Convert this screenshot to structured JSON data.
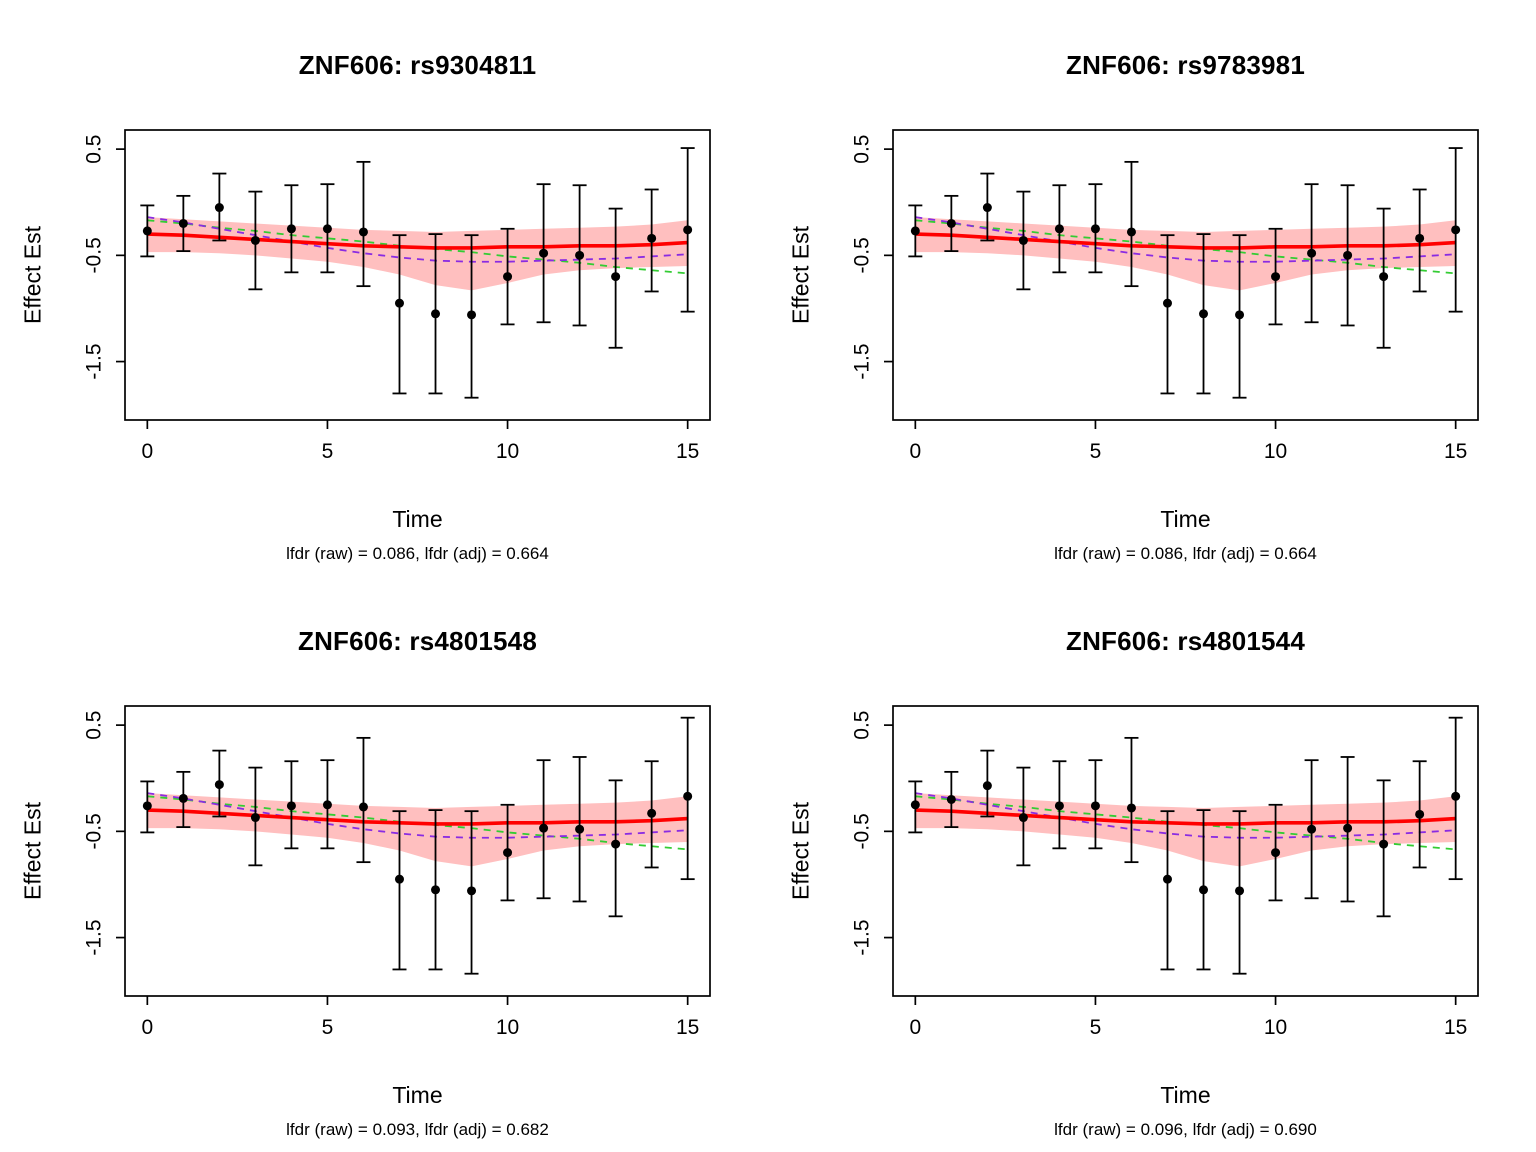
{
  "chart_data": [
    {
      "type": "line",
      "title": "ZNF606: rs9304811",
      "subtitle": "lfdr (raw) = 0.086, lfdr (adj) = 0.664",
      "xlabel": "Time",
      "ylabel": "Effect Est",
      "x": [
        0,
        1,
        2,
        3,
        4,
        5,
        6,
        7,
        8,
        9,
        10,
        11,
        12,
        13,
        14,
        15
      ],
      "xticks": [
        0,
        5,
        10,
        15
      ],
      "yticks": [
        0.5,
        -0.5,
        -1.5
      ],
      "xlim": [
        -0.62,
        15.62
      ],
      "ylim": [
        -2.05,
        0.68
      ],
      "grid": false,
      "legend": "none",
      "series": [
        {
          "name": "effect-estimates",
          "type": "scatter+errorbar",
          "color": "#000000",
          "values": [
            -0.27,
            -0.2,
            -0.05,
            -0.36,
            -0.25,
            -0.25,
            -0.28,
            -0.95,
            -1.05,
            -1.06,
            -0.7,
            -0.48,
            -0.5,
            -0.7,
            -0.34,
            -0.26
          ],
          "ci_lower": [
            -0.51,
            -0.46,
            -0.36,
            -0.82,
            -0.66,
            -0.66,
            -0.79,
            -1.8,
            -1.8,
            -1.84,
            -1.15,
            -1.13,
            -1.16,
            -1.37,
            -0.84,
            -1.03
          ],
          "ci_upper": [
            -0.03,
            0.06,
            0.27,
            0.1,
            0.16,
            0.17,
            0.38,
            -0.31,
            -0.3,
            -0.31,
            -0.25,
            0.17,
            0.16,
            -0.06,
            0.12,
            0.51
          ]
        },
        {
          "name": "confidence-band",
          "type": "band",
          "color": "#FFBFBF",
          "upper": [
            -0.14,
            -0.16,
            -0.18,
            -0.2,
            -0.22,
            -0.24,
            -0.26,
            -0.27,
            -0.28,
            -0.27,
            -0.26,
            -0.25,
            -0.24,
            -0.23,
            -0.21,
            -0.17
          ],
          "lower": [
            -0.47,
            -0.47,
            -0.48,
            -0.5,
            -0.53,
            -0.56,
            -0.61,
            -0.68,
            -0.78,
            -0.83,
            -0.76,
            -0.68,
            -0.64,
            -0.62,
            -0.61,
            -0.6
          ]
        },
        {
          "name": "fitted-mean",
          "type": "line",
          "color": "#FF0000",
          "values": [
            -0.3,
            -0.31,
            -0.33,
            -0.35,
            -0.37,
            -0.39,
            -0.41,
            -0.42,
            -0.43,
            -0.43,
            -0.42,
            -0.42,
            -0.41,
            -0.41,
            -0.4,
            -0.38
          ]
        },
        {
          "name": "spline-purple",
          "type": "dashed-line",
          "color": "#8A2BE2",
          "values": [
            -0.14,
            -0.19,
            -0.25,
            -0.31,
            -0.37,
            -0.43,
            -0.48,
            -0.52,
            -0.55,
            -0.56,
            -0.56,
            -0.55,
            -0.54,
            -0.53,
            -0.51,
            -0.49
          ]
        },
        {
          "name": "spline-green",
          "type": "dashed-line",
          "color": "#33CC33",
          "values": [
            -0.17,
            -0.2,
            -0.24,
            -0.27,
            -0.31,
            -0.34,
            -0.37,
            -0.41,
            -0.44,
            -0.47,
            -0.51,
            -0.54,
            -0.57,
            -0.61,
            -0.64,
            -0.67
          ]
        }
      ]
    },
    {
      "type": "line",
      "title": "ZNF606: rs9783981",
      "subtitle": "lfdr (raw) = 0.086, lfdr (adj) = 0.664",
      "xlabel": "Time",
      "ylabel": "Effect Est",
      "x": [
        0,
        1,
        2,
        3,
        4,
        5,
        6,
        7,
        8,
        9,
        10,
        11,
        12,
        13,
        14,
        15
      ],
      "xticks": [
        0,
        5,
        10,
        15
      ],
      "yticks": [
        0.5,
        -0.5,
        -1.5
      ],
      "xlim": [
        -0.62,
        15.62
      ],
      "ylim": [
        -2.05,
        0.68
      ],
      "grid": false,
      "legend": "none",
      "series": [
        {
          "name": "effect-estimates",
          "type": "scatter+errorbar",
          "color": "#000000",
          "values": [
            -0.27,
            -0.2,
            -0.05,
            -0.36,
            -0.25,
            -0.25,
            -0.28,
            -0.95,
            -1.05,
            -1.06,
            -0.7,
            -0.48,
            -0.5,
            -0.7,
            -0.34,
            -0.26
          ],
          "ci_lower": [
            -0.51,
            -0.46,
            -0.36,
            -0.82,
            -0.66,
            -0.66,
            -0.79,
            -1.8,
            -1.8,
            -1.84,
            -1.15,
            -1.13,
            -1.16,
            -1.37,
            -0.84,
            -1.03
          ],
          "ci_upper": [
            -0.03,
            0.06,
            0.27,
            0.1,
            0.16,
            0.17,
            0.38,
            -0.31,
            -0.3,
            -0.31,
            -0.25,
            0.17,
            0.16,
            -0.06,
            0.12,
            0.51
          ]
        },
        {
          "name": "confidence-band",
          "type": "band",
          "color": "#FFBFBF",
          "upper": [
            -0.14,
            -0.16,
            -0.18,
            -0.2,
            -0.22,
            -0.24,
            -0.26,
            -0.27,
            -0.28,
            -0.27,
            -0.26,
            -0.25,
            -0.24,
            -0.23,
            -0.21,
            -0.17
          ],
          "lower": [
            -0.47,
            -0.47,
            -0.48,
            -0.5,
            -0.53,
            -0.56,
            -0.61,
            -0.68,
            -0.78,
            -0.83,
            -0.76,
            -0.68,
            -0.64,
            -0.62,
            -0.61,
            -0.6
          ]
        },
        {
          "name": "fitted-mean",
          "type": "line",
          "color": "#FF0000",
          "values": [
            -0.3,
            -0.31,
            -0.33,
            -0.35,
            -0.37,
            -0.39,
            -0.41,
            -0.42,
            -0.43,
            -0.43,
            -0.42,
            -0.42,
            -0.41,
            -0.41,
            -0.4,
            -0.38
          ]
        },
        {
          "name": "spline-purple",
          "type": "dashed-line",
          "color": "#8A2BE2",
          "values": [
            -0.14,
            -0.19,
            -0.25,
            -0.31,
            -0.37,
            -0.43,
            -0.48,
            -0.52,
            -0.55,
            -0.56,
            -0.56,
            -0.55,
            -0.54,
            -0.53,
            -0.51,
            -0.49
          ]
        },
        {
          "name": "spline-green",
          "type": "dashed-line",
          "color": "#33CC33",
          "values": [
            -0.17,
            -0.2,
            -0.24,
            -0.27,
            -0.31,
            -0.34,
            -0.37,
            -0.41,
            -0.44,
            -0.47,
            -0.51,
            -0.54,
            -0.57,
            -0.61,
            -0.64,
            -0.67
          ]
        }
      ]
    },
    {
      "type": "line",
      "title": "ZNF606: rs4801548",
      "subtitle": "lfdr (raw) = 0.093, lfdr (adj) = 0.682",
      "xlabel": "Time",
      "ylabel": "Effect Est",
      "x": [
        0,
        1,
        2,
        3,
        4,
        5,
        6,
        7,
        8,
        9,
        10,
        11,
        12,
        13,
        14,
        15
      ],
      "xticks": [
        0,
        5,
        10,
        15
      ],
      "yticks": [
        0.5,
        -0.5,
        -1.5
      ],
      "xlim": [
        -0.62,
        15.62
      ],
      "ylim": [
        -2.05,
        0.68
      ],
      "grid": false,
      "legend": "none",
      "series": [
        {
          "name": "effect-estimates",
          "type": "scatter+errorbar",
          "color": "#000000",
          "values": [
            -0.26,
            -0.19,
            -0.06,
            -0.37,
            -0.26,
            -0.25,
            -0.27,
            -0.95,
            -1.05,
            -1.06,
            -0.7,
            -0.47,
            -0.48,
            -0.62,
            -0.33,
            -0.17
          ],
          "ci_lower": [
            -0.51,
            -0.46,
            -0.36,
            -0.82,
            -0.66,
            -0.66,
            -0.79,
            -1.8,
            -1.8,
            -1.84,
            -1.15,
            -1.13,
            -1.16,
            -1.3,
            -0.84,
            -0.95
          ],
          "ci_upper": [
            -0.03,
            0.06,
            0.26,
            0.1,
            0.16,
            0.17,
            0.38,
            -0.31,
            -0.3,
            -0.31,
            -0.25,
            0.17,
            0.2,
            -0.02,
            0.16,
            0.57
          ]
        },
        {
          "name": "confidence-band",
          "type": "band",
          "color": "#FFBFBF",
          "upper": [
            -0.14,
            -0.16,
            -0.18,
            -0.2,
            -0.22,
            -0.24,
            -0.26,
            -0.27,
            -0.28,
            -0.27,
            -0.26,
            -0.25,
            -0.24,
            -0.23,
            -0.21,
            -0.17
          ],
          "lower": [
            -0.47,
            -0.47,
            -0.48,
            -0.5,
            -0.53,
            -0.56,
            -0.61,
            -0.68,
            -0.78,
            -0.83,
            -0.76,
            -0.68,
            -0.64,
            -0.62,
            -0.61,
            -0.6
          ]
        },
        {
          "name": "fitted-mean",
          "type": "line",
          "color": "#FF0000",
          "values": [
            -0.3,
            -0.31,
            -0.33,
            -0.35,
            -0.37,
            -0.39,
            -0.41,
            -0.42,
            -0.43,
            -0.43,
            -0.42,
            -0.42,
            -0.41,
            -0.41,
            -0.4,
            -0.38
          ]
        },
        {
          "name": "spline-purple",
          "type": "dashed-line",
          "color": "#8A2BE2",
          "values": [
            -0.14,
            -0.19,
            -0.25,
            -0.31,
            -0.37,
            -0.43,
            -0.48,
            -0.52,
            -0.55,
            -0.56,
            -0.56,
            -0.55,
            -0.54,
            -0.53,
            -0.51,
            -0.49
          ]
        },
        {
          "name": "spline-green",
          "type": "dashed-line",
          "color": "#33CC33",
          "values": [
            -0.17,
            -0.2,
            -0.24,
            -0.27,
            -0.31,
            -0.34,
            -0.37,
            -0.41,
            -0.44,
            -0.47,
            -0.51,
            -0.54,
            -0.57,
            -0.61,
            -0.64,
            -0.67
          ]
        }
      ]
    },
    {
      "type": "line",
      "title": "ZNF606: rs4801544",
      "subtitle": "lfdr (raw) = 0.096, lfdr (adj) = 0.690",
      "xlabel": "Time",
      "ylabel": "Effect Est",
      "x": [
        0,
        1,
        2,
        3,
        4,
        5,
        6,
        7,
        8,
        9,
        10,
        11,
        12,
        13,
        14,
        15
      ],
      "xticks": [
        0,
        5,
        10,
        15
      ],
      "yticks": [
        0.5,
        -0.5,
        -1.5
      ],
      "xlim": [
        -0.62,
        15.62
      ],
      "ylim": [
        -2.05,
        0.68
      ],
      "grid": false,
      "legend": "none",
      "series": [
        {
          "name": "effect-estimates",
          "type": "scatter+errorbar",
          "color": "#000000",
          "values": [
            -0.25,
            -0.2,
            -0.07,
            -0.37,
            -0.26,
            -0.26,
            -0.28,
            -0.95,
            -1.05,
            -1.06,
            -0.7,
            -0.48,
            -0.47,
            -0.62,
            -0.34,
            -0.17
          ],
          "ci_lower": [
            -0.51,
            -0.46,
            -0.36,
            -0.82,
            -0.66,
            -0.66,
            -0.79,
            -1.8,
            -1.8,
            -1.84,
            -1.15,
            -1.13,
            -1.16,
            -1.3,
            -0.84,
            -0.95
          ],
          "ci_upper": [
            -0.03,
            0.06,
            0.26,
            0.1,
            0.16,
            0.17,
            0.38,
            -0.31,
            -0.3,
            -0.31,
            -0.25,
            0.17,
            0.2,
            -0.02,
            0.16,
            0.57
          ]
        },
        {
          "name": "confidence-band",
          "type": "band",
          "color": "#FFBFBF",
          "upper": [
            -0.14,
            -0.16,
            -0.18,
            -0.2,
            -0.22,
            -0.24,
            -0.26,
            -0.27,
            -0.28,
            -0.27,
            -0.26,
            -0.25,
            -0.24,
            -0.23,
            -0.21,
            -0.17
          ],
          "lower": [
            -0.47,
            -0.47,
            -0.48,
            -0.5,
            -0.53,
            -0.56,
            -0.61,
            -0.68,
            -0.78,
            -0.83,
            -0.76,
            -0.68,
            -0.64,
            -0.62,
            -0.61,
            -0.6
          ]
        },
        {
          "name": "fitted-mean",
          "type": "line",
          "color": "#FF0000",
          "values": [
            -0.3,
            -0.31,
            -0.33,
            -0.35,
            -0.37,
            -0.39,
            -0.41,
            -0.42,
            -0.43,
            -0.43,
            -0.42,
            -0.42,
            -0.41,
            -0.41,
            -0.4,
            -0.38
          ]
        },
        {
          "name": "spline-purple",
          "type": "dashed-line",
          "color": "#8A2BE2",
          "values": [
            -0.14,
            -0.19,
            -0.25,
            -0.31,
            -0.37,
            -0.43,
            -0.48,
            -0.52,
            -0.55,
            -0.56,
            -0.56,
            -0.55,
            -0.54,
            -0.53,
            -0.51,
            -0.49
          ]
        },
        {
          "name": "spline-green",
          "type": "dashed-line",
          "color": "#33CC33",
          "values": [
            -0.17,
            -0.2,
            -0.24,
            -0.27,
            -0.31,
            -0.34,
            -0.37,
            -0.41,
            -0.44,
            -0.47,
            -0.51,
            -0.54,
            -0.57,
            -0.61,
            -0.64,
            -0.67
          ]
        }
      ]
    }
  ]
}
